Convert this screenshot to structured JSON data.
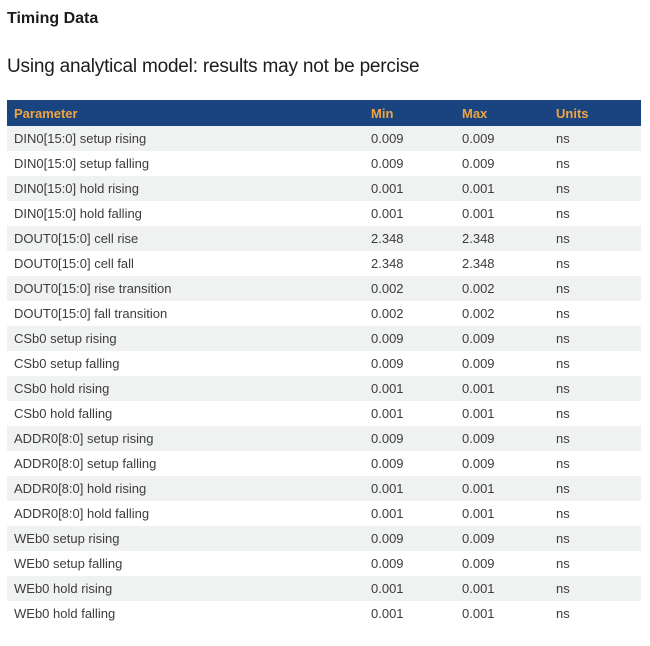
{
  "page": {
    "title": "Timing Data",
    "subtitle": "Using analytical model: results may not be percise"
  },
  "colors": {
    "header_bg": "#1a4480",
    "header_text": "#f0a440",
    "stripe": "#f0f1f1",
    "cell_text": "#3c3c3c"
  },
  "table": {
    "columns": [
      "Parameter",
      "Min",
      "Max",
      "Units"
    ],
    "rows": [
      {
        "parameter": "DIN0[15:0] setup rising",
        "min": "0.009",
        "max": "0.009",
        "units": "ns"
      },
      {
        "parameter": "DIN0[15:0] setup falling",
        "min": "0.009",
        "max": "0.009",
        "units": "ns"
      },
      {
        "parameter": "DIN0[15:0] hold rising",
        "min": "0.001",
        "max": "0.001",
        "units": "ns"
      },
      {
        "parameter": "DIN0[15:0] hold falling",
        "min": "0.001",
        "max": "0.001",
        "units": "ns"
      },
      {
        "parameter": "DOUT0[15:0] cell rise",
        "min": "2.348",
        "max": "2.348",
        "units": "ns"
      },
      {
        "parameter": "DOUT0[15:0] cell fall",
        "min": "2.348",
        "max": "2.348",
        "units": "ns"
      },
      {
        "parameter": "DOUT0[15:0] rise transition",
        "min": "0.002",
        "max": "0.002",
        "units": "ns"
      },
      {
        "parameter": "DOUT0[15:0] fall transition",
        "min": "0.002",
        "max": "0.002",
        "units": "ns"
      },
      {
        "parameter": "CSb0 setup rising",
        "min": "0.009",
        "max": "0.009",
        "units": "ns"
      },
      {
        "parameter": "CSb0 setup falling",
        "min": "0.009",
        "max": "0.009",
        "units": "ns"
      },
      {
        "parameter": "CSb0 hold rising",
        "min": "0.001",
        "max": "0.001",
        "units": "ns"
      },
      {
        "parameter": "CSb0 hold falling",
        "min": "0.001",
        "max": "0.001",
        "units": "ns"
      },
      {
        "parameter": "ADDR0[8:0] setup rising",
        "min": "0.009",
        "max": "0.009",
        "units": "ns"
      },
      {
        "parameter": "ADDR0[8:0] setup falling",
        "min": "0.009",
        "max": "0.009",
        "units": "ns"
      },
      {
        "parameter": "ADDR0[8:0] hold rising",
        "min": "0.001",
        "max": "0.001",
        "units": "ns"
      },
      {
        "parameter": "ADDR0[8:0] hold falling",
        "min": "0.001",
        "max": "0.001",
        "units": "ns"
      },
      {
        "parameter": "WEb0 setup rising",
        "min": "0.009",
        "max": "0.009",
        "units": "ns"
      },
      {
        "parameter": "WEb0 setup falling",
        "min": "0.009",
        "max": "0.009",
        "units": "ns"
      },
      {
        "parameter": "WEb0 hold rising",
        "min": "0.001",
        "max": "0.001",
        "units": "ns"
      },
      {
        "parameter": "WEb0 hold falling",
        "min": "0.001",
        "max": "0.001",
        "units": "ns"
      }
    ]
  }
}
